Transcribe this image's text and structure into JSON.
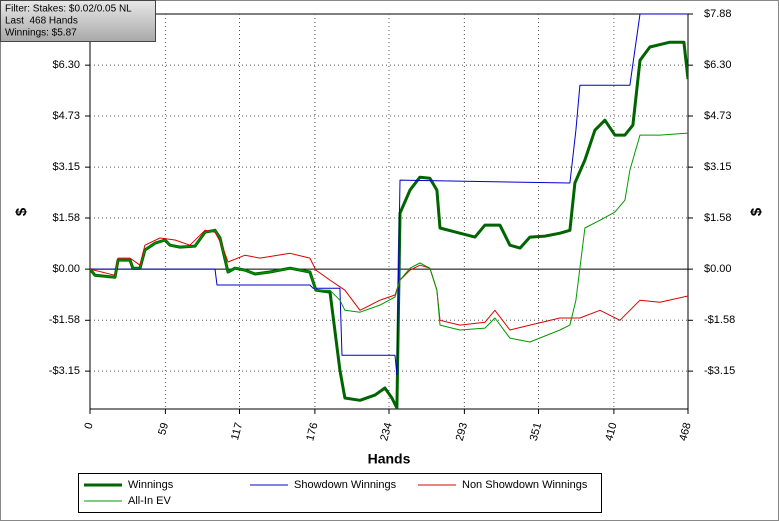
{
  "chart_data": {
    "type": "line",
    "annotation": [
      "Filter: Stakes: $0.02/0.05 NL",
      "Last  468 Hands",
      "Winnings: $5.87"
    ],
    "xlabel": "Hands",
    "ylabel": "$",
    "y2label": "$",
    "xlim": [
      0,
      468
    ],
    "xticks": [
      0,
      59,
      117,
      176,
      234,
      293,
      351,
      410,
      468
    ],
    "ylim": [
      -4.32,
      7.88
    ],
    "yticks": [
      {
        "value": -3.15,
        "label": "-$3.15"
      },
      {
        "value": -1.58,
        "label": "-$1.58"
      },
      {
        "value": 0,
        "label": "$0.00"
      },
      {
        "value": 1.58,
        "label": "$1.58"
      },
      {
        "value": 3.15,
        "label": "$3.15"
      },
      {
        "value": 4.73,
        "label": "$4.73"
      },
      {
        "value": 6.3,
        "label": "$6.30"
      }
    ],
    "y2lim": [
      -4.32,
      7.88
    ],
    "y2ticks": [
      {
        "value": -3.15,
        "label": "-$3.15"
      },
      {
        "value": -1.58,
        "label": "-$1.58"
      },
      {
        "value": 0,
        "label": "$0.00"
      },
      {
        "value": 1.58,
        "label": "$1.58"
      },
      {
        "value": 3.15,
        "label": "$3.15"
      },
      {
        "value": 4.73,
        "label": "$4.73"
      },
      {
        "value": 6.3,
        "label": "$6.30"
      },
      {
        "value": 7.88,
        "label": "$7.88"
      }
    ],
    "grid": true,
    "series": [
      {
        "name": "Winnings",
        "color": "#006400",
        "width": 3,
        "x": [
          0,
          3.9,
          19.6,
          21.9,
          31.3,
          33.6,
          39.1,
          43,
          50.9,
          58.7,
          62.6,
          70.4,
          82.2,
          90,
          97.8,
          101.7,
          108,
          113.5,
          121.3,
          129.1,
          140.8,
          156.5,
          172.1,
          176.8,
          187.8,
          195.6,
          199.5,
          211.3,
          223,
          230.8,
          236.3,
          240.2,
          242.6,
          250.4,
          258.2,
          266,
          271.5,
          273.9,
          289.5,
          301.3,
          309.1,
          320.8,
          328.6,
          336.5,
          344.3,
          356,
          367.8,
          375.6,
          379.5,
          387.3,
          395.1,
          403,
          410.8,
          418.6,
          424.9,
          430.4,
          438.2,
          453.8,
          464.8,
          468
        ],
        "values": [
          0,
          -0.19,
          -0.25,
          0.28,
          0.28,
          0.03,
          0.03,
          0.59,
          0.8,
          0.9,
          0.74,
          0.68,
          0.71,
          1.14,
          1.2,
          0.96,
          -0.09,
          0.03,
          -0.03,
          -0.15,
          -0.09,
          0.03,
          -0.09,
          -0.65,
          -0.71,
          -3.12,
          -3.98,
          -4.05,
          -3.89,
          -3.67,
          -3.98,
          -4.29,
          1.73,
          2.44,
          2.84,
          2.81,
          2.44,
          1.27,
          1.11,
          0.99,
          1.36,
          1.36,
          0.74,
          0.65,
          0.99,
          1.02,
          1.11,
          1.2,
          2.66,
          3.37,
          4.29,
          4.6,
          4.14,
          4.14,
          4.45,
          6.45,
          6.86,
          7.01,
          7.01,
          5.87
        ]
      },
      {
        "name": "Showdown Winnings",
        "color": "#0000cc",
        "width": 1,
        "x": [
          0,
          97.8,
          99.4,
          172.1,
          174.5,
          195.6,
          197.2,
          238.7,
          240.2,
          242.6,
          375.6,
          380.3,
          383.4,
          422.5,
          430.4,
          468
        ],
        "values": [
          0,
          0,
          -0.49,
          -0.49,
          -0.59,
          -0.59,
          -2.66,
          -2.66,
          -3.27,
          2.75,
          2.66,
          4.29,
          5.68,
          5.68,
          7.88,
          7.88
        ]
      },
      {
        "name": "Non Showdown Winnings",
        "color": "#dd0000",
        "width": 1,
        "x": [
          0,
          19.6,
          21.9,
          31.3,
          39.1,
          43,
          54.8,
          66.5,
          78.2,
          90,
          97.8,
          103.3,
          108,
          121.3,
          133,
          156.5,
          172.1,
          176.8,
          187.8,
          199.5,
          211.3,
          226.9,
          238.7,
          242.6,
          250.4,
          258.2,
          266,
          271.5,
          273.9,
          289.5,
          309.1,
          316.9,
          328.6,
          344.3,
          367.8,
          383.4,
          399.1,
          414.7,
          430.4,
          446,
          468
        ],
        "values": [
          0,
          -0.19,
          0.34,
          0.34,
          0.12,
          0.74,
          0.96,
          0.9,
          0.74,
          1.2,
          1.14,
          0.74,
          0.22,
          0.43,
          0.34,
          0.49,
          0.34,
          -0.03,
          -0.34,
          -0.65,
          -1.27,
          -0.96,
          -0.8,
          -0.34,
          -0.03,
          0.12,
          0.03,
          -0.65,
          -1.58,
          -1.73,
          -1.64,
          -1.27,
          -1.88,
          -1.73,
          -1.51,
          -1.51,
          -1.27,
          -1.58,
          -0.96,
          -1.02,
          -0.83
        ]
      },
      {
        "name": "All-In EV",
        "color": "#009900",
        "width": 1,
        "x": [
          0,
          3.9,
          19.6,
          21.9,
          31.3,
          33.6,
          39.1,
          43,
          50.9,
          58.7,
          62.6,
          70.4,
          82.2,
          90,
          97.8,
          101.7,
          108,
          113.5,
          121.3,
          129.1,
          140.8,
          156.5,
          172.1,
          176.8,
          187.8,
          195.6,
          199.5,
          211.3,
          226.9,
          238.7,
          242.6,
          250.4,
          258.2,
          266,
          271.5,
          273.9,
          289.5,
          309.1,
          316.9,
          328.6,
          344.3,
          367.8,
          375.6,
          380.3,
          387.3,
          399.1,
          410.8,
          418.6,
          422.5,
          430.4,
          446,
          468
        ],
        "values": [
          0,
          -0.19,
          -0.25,
          0.28,
          0.28,
          0.03,
          0.03,
          0.59,
          0.8,
          0.9,
          0.74,
          0.68,
          0.71,
          1.14,
          1.2,
          0.96,
          -0.09,
          0.03,
          -0.03,
          -0.15,
          -0.09,
          0.03,
          -0.09,
          -0.65,
          -0.65,
          -0.96,
          -1.27,
          -1.33,
          -1.11,
          -0.86,
          -0.34,
          0.03,
          0.19,
          0.03,
          -0.65,
          -1.73,
          -1.88,
          -1.82,
          -1.51,
          -2.13,
          -2.25,
          -1.88,
          -1.73,
          -0.96,
          1.27,
          1.51,
          1.76,
          2.13,
          3.06,
          4.14,
          4.14,
          4.2
        ]
      }
    ]
  }
}
